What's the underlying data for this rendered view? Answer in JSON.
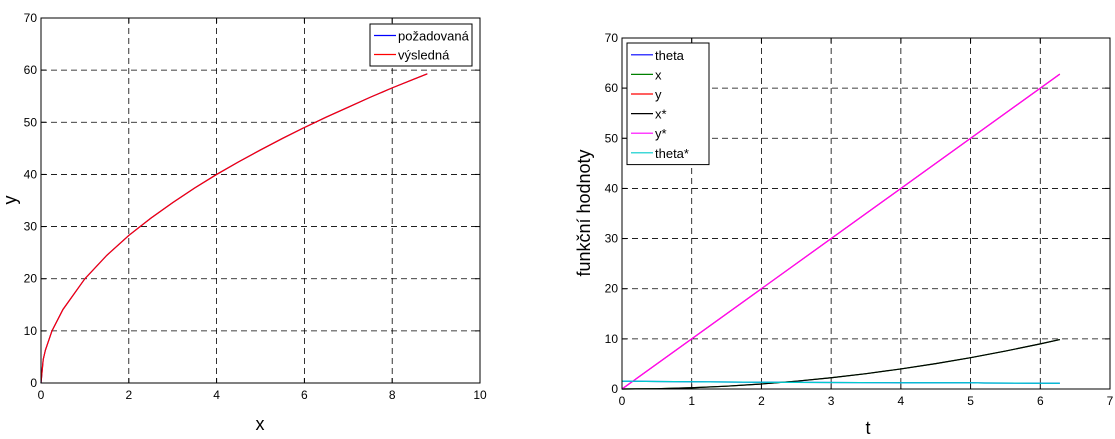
{
  "chart_data": [
    {
      "type": "line",
      "title": "",
      "xlabel": "x",
      "ylabel": "y",
      "xlim": [
        0,
        10
      ],
      "ylim": [
        0,
        70
      ],
      "xticks": [
        0,
        2,
        4,
        6,
        8,
        10
      ],
      "yticks": [
        0,
        10,
        20,
        30,
        40,
        50,
        60,
        70
      ],
      "grid": true,
      "legend_position": "top-right",
      "series": [
        {
          "name": "požadovaná",
          "color": "#0000ff",
          "x": [
            0,
            0.05,
            0.1,
            0.25,
            0.5,
            1,
            1.5,
            2,
            2.5,
            3,
            3.5,
            4,
            4.5,
            5,
            5.5,
            6,
            6.5,
            7,
            7.5,
            8,
            8.5,
            8.8
          ],
          "y": [
            0,
            4.5,
            6.3,
            10,
            14.1,
            20,
            24.5,
            28.3,
            31.6,
            34.6,
            37.4,
            40,
            42.4,
            44.7,
            46.9,
            49,
            51,
            52.9,
            54.8,
            56.6,
            58.3,
            59.3
          ]
        },
        {
          "name": "výsledná",
          "color": "#ff0000",
          "x": [
            0,
            0.05,
            0.1,
            0.25,
            0.5,
            1,
            1.5,
            2,
            2.5,
            3,
            3.5,
            4,
            4.5,
            5,
            5.5,
            6,
            6.5,
            7,
            7.5,
            8,
            8.5,
            8.8
          ],
          "y": [
            0,
            4.5,
            6.3,
            10,
            14.1,
            20,
            24.5,
            28.3,
            31.6,
            34.6,
            37.4,
            40,
            42.4,
            44.7,
            46.9,
            49,
            51,
            52.9,
            54.8,
            56.6,
            58.3,
            59.3
          ]
        }
      ]
    },
    {
      "type": "line",
      "title": "",
      "xlabel": "t",
      "ylabel": "funkční hodnoty",
      "xlim": [
        0,
        7
      ],
      "ylim": [
        0,
        70
      ],
      "xticks": [
        0,
        1,
        2,
        3,
        4,
        5,
        6,
        7
      ],
      "yticks": [
        0,
        10,
        20,
        30,
        40,
        50,
        60,
        70
      ],
      "grid": true,
      "legend_position": "top-left",
      "series": [
        {
          "name": "theta",
          "color": "#0000ff",
          "x": [
            0,
            0.5,
            1,
            2,
            3,
            4,
            5,
            5.2,
            6,
            6.28
          ],
          "y": [
            1.57,
            1.5,
            1.45,
            1.35,
            1.3,
            1.25,
            1.25,
            1.2,
            1.15,
            1.15
          ]
        },
        {
          "name": "x",
          "color": "#008000",
          "x": [
            0,
            0.5,
            1,
            1.5,
            2,
            2.5,
            3,
            3.5,
            4,
            4.5,
            5,
            5.5,
            6,
            6.28
          ],
          "y": [
            0,
            0.06,
            0.25,
            0.56,
            1,
            1.56,
            2.25,
            3.06,
            4,
            5.06,
            6.25,
            7.56,
            9,
            9.86
          ]
        },
        {
          "name": "y",
          "color": "#ff0000",
          "x": [
            0,
            6.28
          ],
          "y": [
            0,
            62.8
          ]
        },
        {
          "name": "x*",
          "color": "#000000",
          "x": [
            0,
            0.5,
            1,
            1.5,
            2,
            2.5,
            3,
            3.5,
            4,
            4.5,
            5,
            5.5,
            6,
            6.28
          ],
          "y": [
            0,
            0.06,
            0.25,
            0.56,
            1,
            1.56,
            2.25,
            3.06,
            4,
            5.06,
            6.25,
            7.56,
            9,
            9.86
          ]
        },
        {
          "name": "y*",
          "color": "#ff00ff",
          "x": [
            0,
            6.28
          ],
          "y": [
            0,
            62.8
          ]
        },
        {
          "name": "theta*",
          "color": "#00cccc",
          "x": [
            0,
            0.5,
            1,
            2,
            3,
            4,
            5,
            5.2,
            6,
            6.28
          ],
          "y": [
            1.57,
            1.5,
            1.45,
            1.35,
            1.3,
            1.25,
            1.25,
            1.2,
            1.15,
            1.15
          ]
        }
      ]
    }
  ]
}
